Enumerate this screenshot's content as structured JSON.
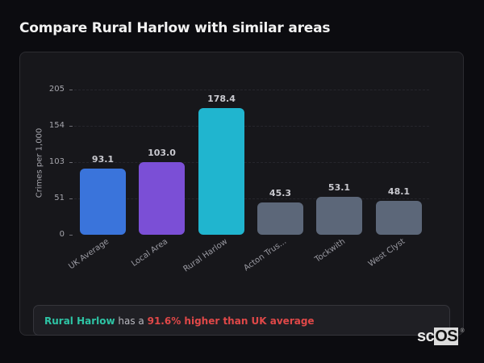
{
  "header": {
    "title": "Compare Rural Harlow with similar areas"
  },
  "chart_data": {
    "type": "bar",
    "title": "Compare Rural Harlow with similar areas",
    "xlabel": "",
    "ylabel": "Crimes per 1,000",
    "ylim": [
      0,
      205
    ],
    "yticks": [
      0,
      51,
      103,
      154,
      205
    ],
    "grid": true,
    "legend": null,
    "categories": [
      "UK Average",
      "Local Area",
      "Rural Harlow",
      "Acton Trus...",
      "Tockwith",
      "West Clyst"
    ],
    "values": [
      93.1,
      103.0,
      178.4,
      45.3,
      53.1,
      48.1
    ],
    "value_labels": [
      "93.1",
      "103.0",
      "178.4",
      "45.3",
      "53.1",
      "48.1"
    ],
    "colors": [
      "#3a74db",
      "#7b4fd6",
      "#20b5cf",
      "#5c6779",
      "#5c6779",
      "#5c6779"
    ]
  },
  "summary": {
    "area": "Rural Harlow",
    "middle": " has a ",
    "difference": "91.6% higher than UK average",
    "colors": {
      "area": "#2ec4a5",
      "difference": "#e04848"
    }
  },
  "watermark": {
    "sc": "sc",
    "os": "OS",
    "reg": "®"
  }
}
